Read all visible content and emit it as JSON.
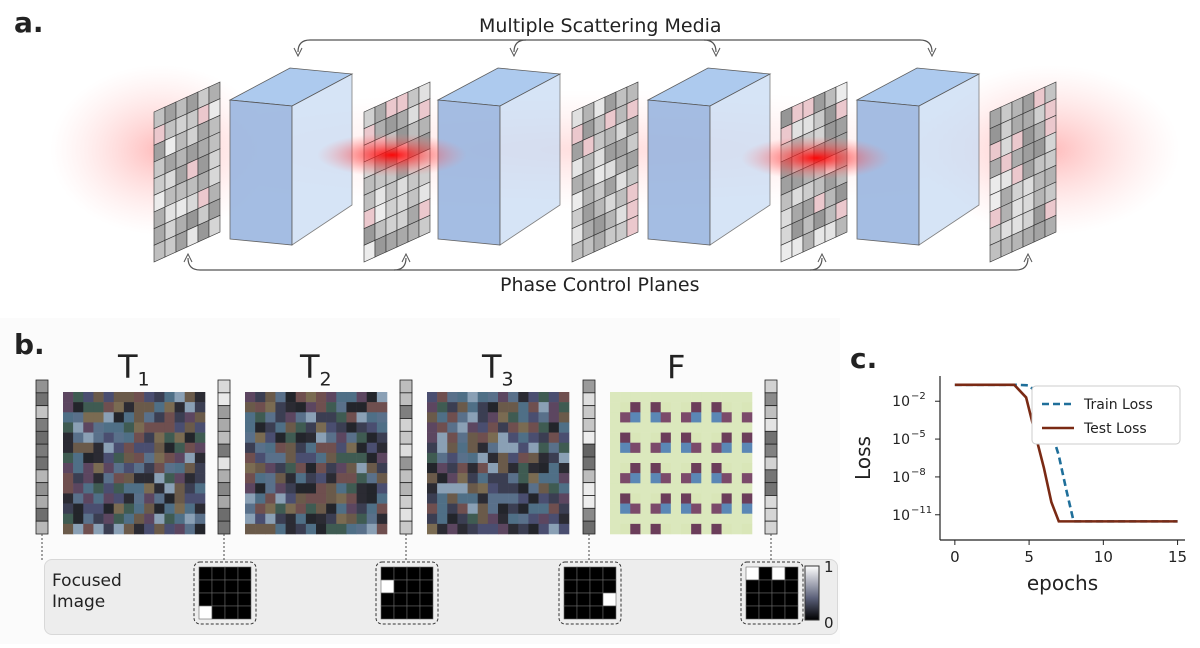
{
  "figure": {
    "panel_a": {
      "letter": "a.",
      "top_label": "Multiple Scattering Media",
      "bottom_label": "Phase Control Planes"
    },
    "panel_b": {
      "letter": "b.",
      "matrix_labels": [
        {
          "main": "T",
          "sub": "1"
        },
        {
          "main": "T",
          "sub": "2"
        },
        {
          "main": "T",
          "sub": "3"
        },
        {
          "main": "F",
          "sub": ""
        }
      ],
      "focused_label_line1": "Focused",
      "focused_label_line2": "Image",
      "colorbar_max": "1",
      "colorbar_min": "0"
    },
    "panel_c": {
      "letter": "c."
    }
  },
  "chart_data": {
    "type": "line",
    "xlabel": "epochs",
    "ylabel": "Loss",
    "yscale": "log",
    "xlim": [
      -1,
      15.5
    ],
    "ylim": [
      1e-13,
      1
    ],
    "xticks": [
      0,
      5,
      10,
      15
    ],
    "ytick_values": [
      0.01,
      1e-05,
      1e-08,
      1e-11
    ],
    "ytick_labels": [
      {
        "base": "10",
        "exp": "−2"
      },
      {
        "base": "10",
        "exp": "−5"
      },
      {
        "base": "10",
        "exp": "−8"
      },
      {
        "base": "10",
        "exp": "−11"
      }
    ],
    "legend_position": "top-right",
    "series": [
      {
        "name": "Train Loss",
        "style": "dashed",
        "color": "#1f6f9a",
        "x": [
          0,
          4.2,
          5.0,
          5.8,
          6.4,
          7.0,
          7.5,
          8.0,
          15
        ],
        "y": [
          0.2,
          0.2,
          0.18,
          0.02,
          0.0001,
          5e-07,
          1e-09,
          3e-12,
          3e-12
        ]
      },
      {
        "name": "Test Loss",
        "style": "solid",
        "color": "#7a2a14",
        "x": [
          0,
          4.0,
          4.8,
          5.5,
          6.0,
          6.5,
          7.0,
          15
        ],
        "y": [
          0.2,
          0.2,
          0.02,
          1e-05,
          5e-08,
          1e-10,
          3e-12,
          3e-12
        ]
      }
    ]
  }
}
